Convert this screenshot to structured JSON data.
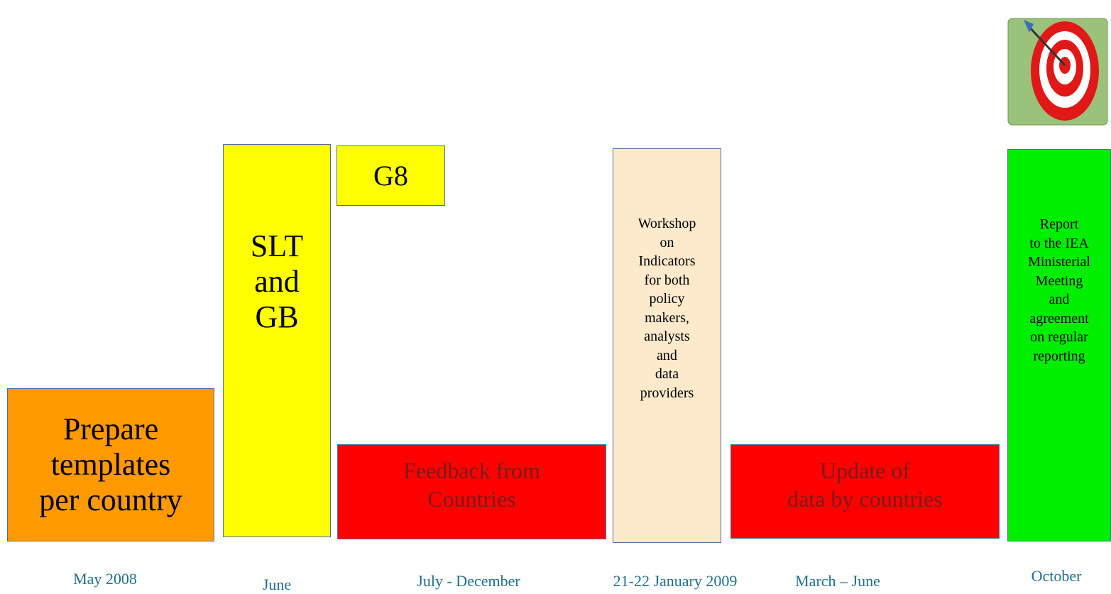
{
  "boxes": [
    {
      "lines": [
        "Prepare",
        "templates",
        "per country"
      ]
    },
    {
      "lines": [
        "SLT",
        "and",
        "GB"
      ]
    },
    {
      "lines": [
        "G8"
      ]
    },
    {
      "lines": [
        "Feedback from",
        "Countries"
      ]
    },
    {
      "lines": [
        "Workshop",
        "on",
        "Indicators",
        "for both",
        "policy",
        "makers,",
        "analysts",
        "and",
        "data",
        "providers"
      ]
    },
    {
      "lines": [
        "Update of",
        "data by countries"
      ]
    },
    {
      "lines": [
        "Report",
        "to the IEA",
        "Ministerial",
        "Meeting",
        "and",
        "agreement",
        "on regular",
        "reporting"
      ]
    }
  ],
  "dates": [
    "May 2008",
    "June",
    "July - December",
    "21-22 January 2009",
    "March –  June",
    "October"
  ]
}
